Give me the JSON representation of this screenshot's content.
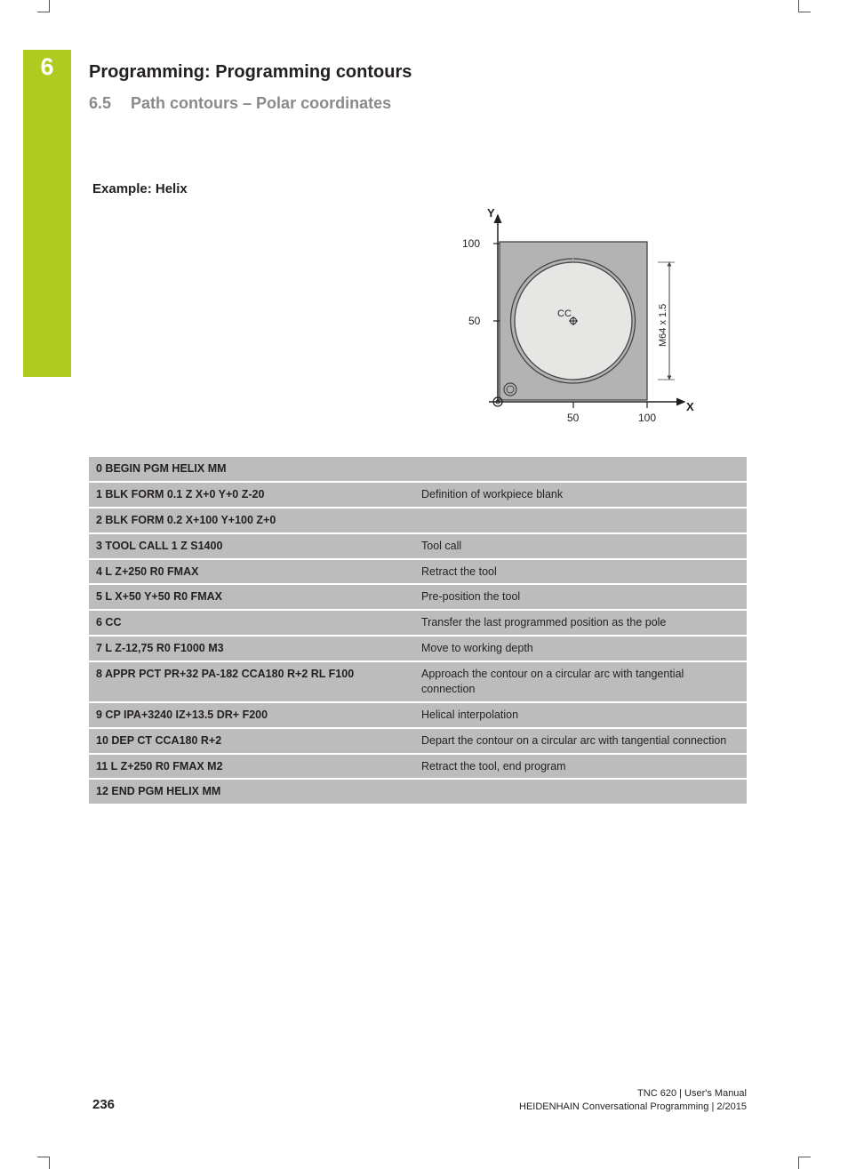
{
  "chapter": {
    "number": "6"
  },
  "header": {
    "doc_title": "Programming: Programming contours",
    "section_number": "6.5",
    "section_title": "Path contours – Polar coordinates"
  },
  "example_heading": "Example: Helix",
  "diagram": {
    "axis_y_label": "Y",
    "axis_x_label": "X",
    "y_tick_100": "100",
    "y_tick_50": "50",
    "x_tick_50": "50",
    "x_tick_100": "100",
    "cc_label": "CC",
    "dim_label": "M64 x 1.5",
    "colors": {
      "square_fill": "#b4b3b3",
      "circle_fill": "#e6e6e5",
      "stroke": "#444444",
      "axis": "#231f20"
    }
  },
  "program": {
    "row_bg": "#bdbcbc",
    "rows": [
      {
        "code": "0 BEGIN PGM HELIX MM",
        "desc": ""
      },
      {
        "code": "1 BLK FORM 0.1 Z X+0 Y+0 Z-20",
        "desc": "Definition of workpiece blank"
      },
      {
        "code": "2 BLK FORM 0.2 X+100 Y+100 Z+0",
        "desc": ""
      },
      {
        "code": "3 TOOL CALL 1 Z S1400",
        "desc": "Tool call"
      },
      {
        "code": "4 L Z+250 R0 FMAX",
        "desc": "Retract the tool"
      },
      {
        "code": "5 L X+50 Y+50 R0 FMAX",
        "desc": "Pre-position the tool"
      },
      {
        "code": "6 CC",
        "desc": "Transfer the last programmed position as the pole"
      },
      {
        "code": "7 L Z-12,75 R0 F1000 M3",
        "desc": "Move to working depth"
      },
      {
        "code": "8 APPR PCT PR+32 PA-182 CCA180 R+2 RL F100",
        "desc": "Approach the contour on a circular arc with tangential connection"
      },
      {
        "code": "9 CP IPA+3240 IZ+13.5 DR+ F200",
        "desc": "Helical interpolation"
      },
      {
        "code": "10 DEP CT CCA180 R+2",
        "desc": "Depart the contour on a circular arc with tangential connection"
      },
      {
        "code": "11 L Z+250 R0 FMAX M2",
        "desc": "Retract the tool, end program"
      },
      {
        "code": "12 END PGM HELIX MM",
        "desc": ""
      }
    ]
  },
  "footer": {
    "page_number": "236",
    "line1": "TNC 620 | User's Manual",
    "line2": "HEIDENHAIN Conversational Programming | 2/2015"
  }
}
